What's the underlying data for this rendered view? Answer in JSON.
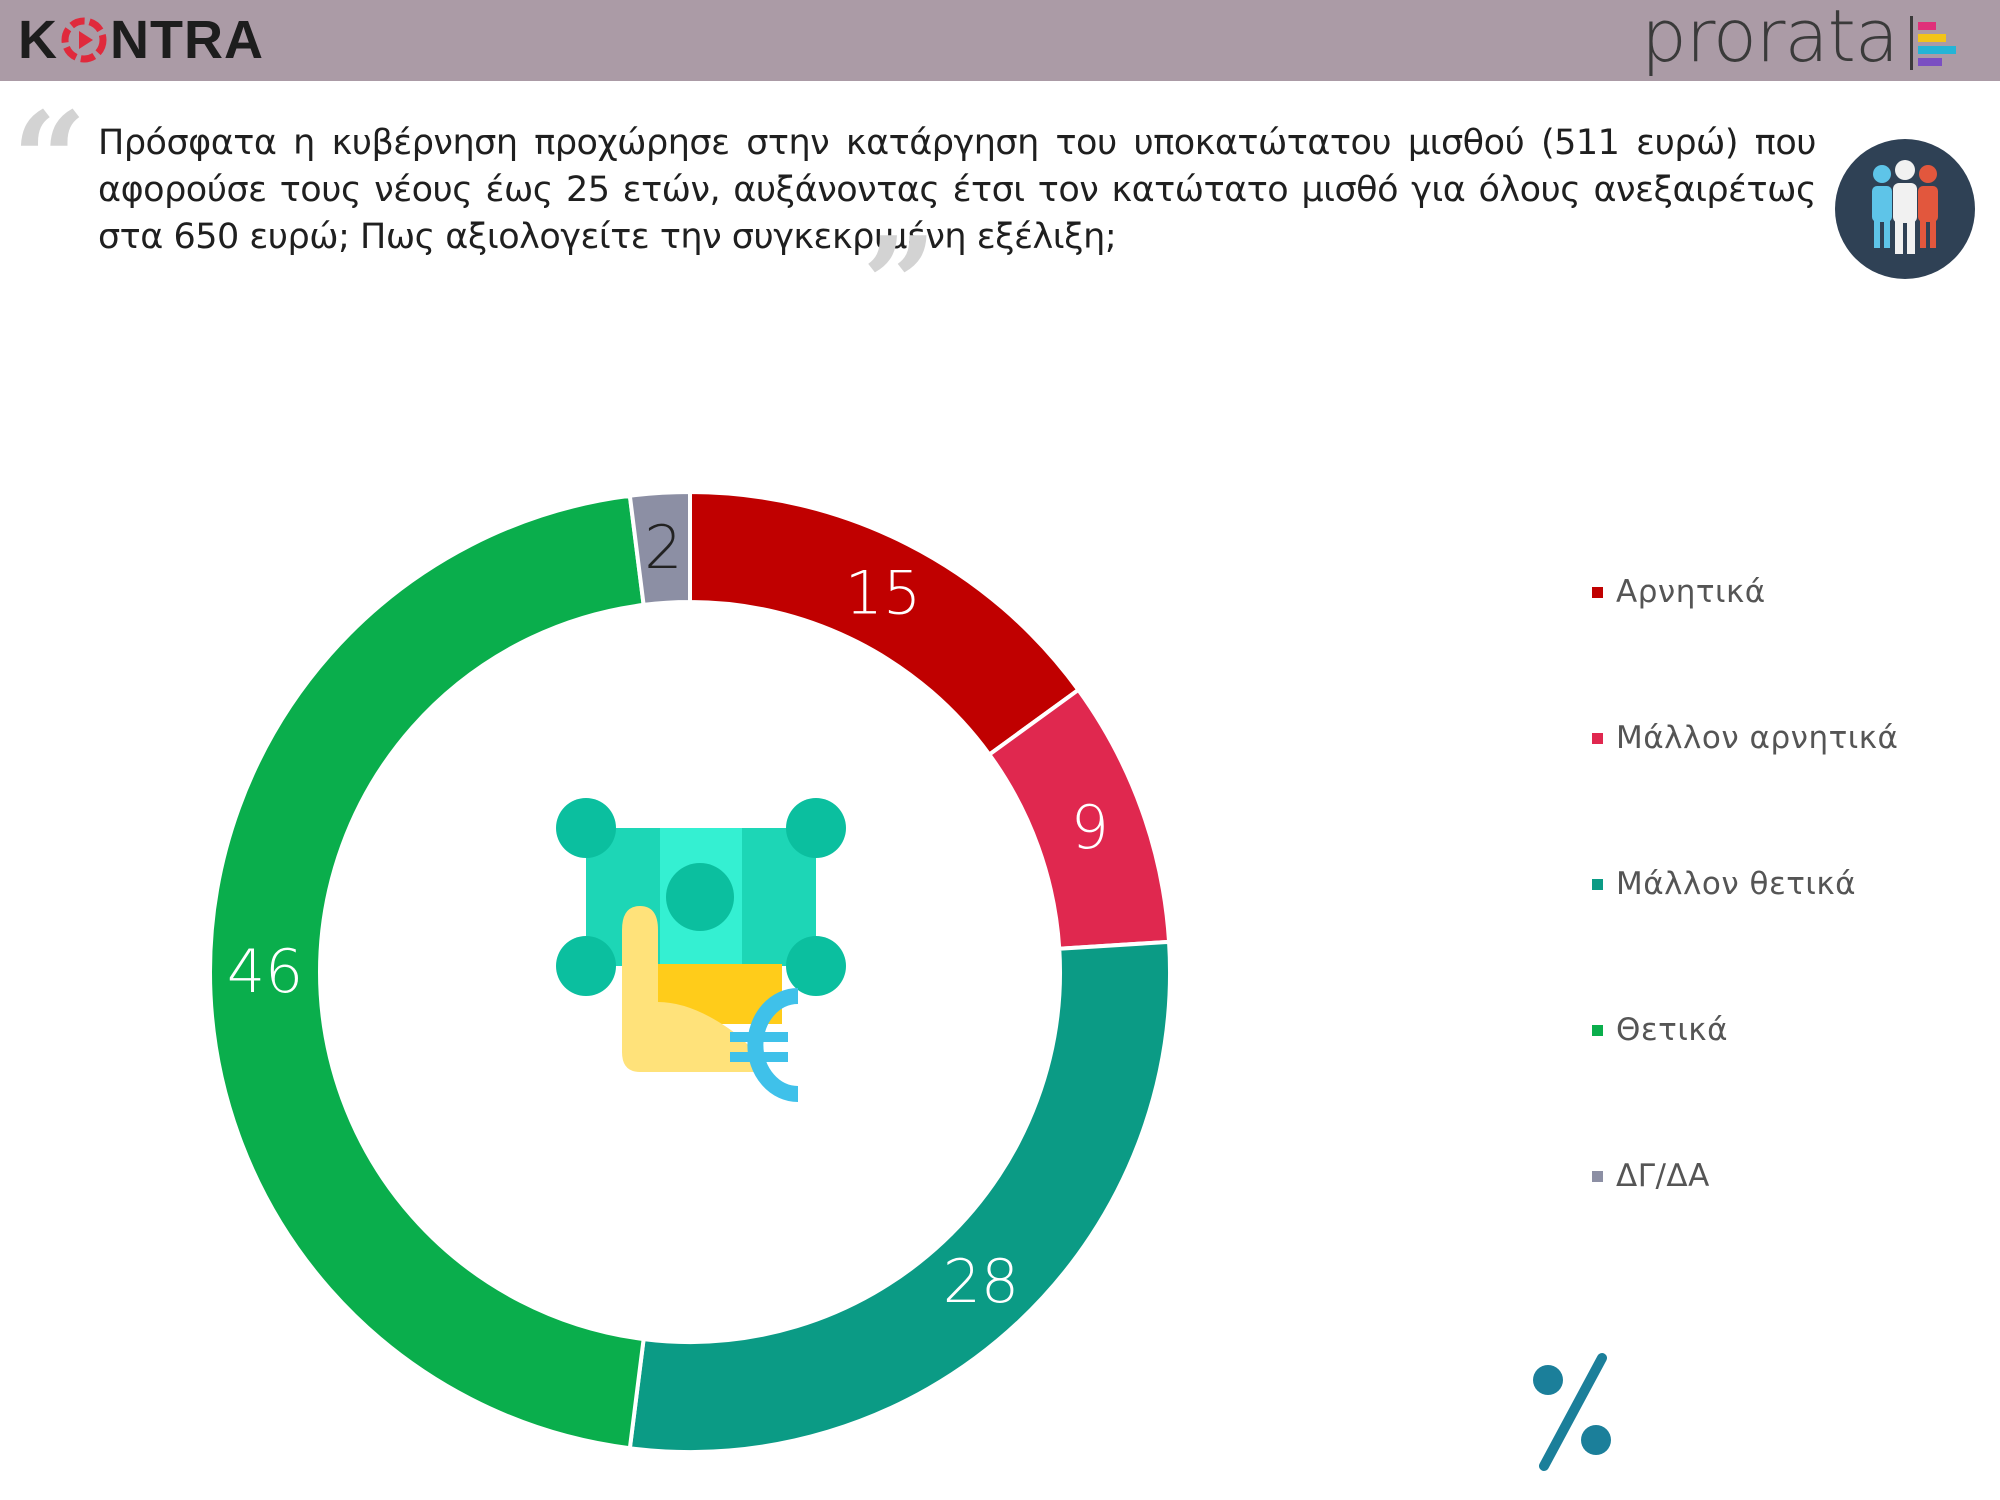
{
  "header": {
    "brand_left_before": "K",
    "brand_left_after": "NTRA",
    "brand_right": "prorata",
    "bar_color": "#ab9ba6"
  },
  "question": {
    "text": "Πρόσφατα η κυβέρνηση προχώρησε στην κατάργηση του υποκατώτατου μισθού (511 ευρώ) που αφορούσε τους νέους έως 25 ετών, αυξάνοντας έτσι τον κατώτατο μισθό για όλους ανεξαιρέτως στα 650 ευρώ; Πως αξιολογείτε την συγκεκριμένη εξέλιξη;"
  },
  "icons": {
    "quote_open": "opening-quote-icon",
    "quote_close": "closing-quote-icon",
    "badge": "people-group-icon",
    "center": "money-hand-euro-icon",
    "unit": "percent-icon"
  },
  "chart_data": {
    "type": "pie",
    "variant": "donut",
    "categories": [
      "Αρνητικά",
      "Μάλλον αρνητικά",
      "Μάλλον θετικά",
      "Θετικά",
      "ΔΓ/ΔΑ"
    ],
    "values": [
      15,
      9,
      28,
      46,
      2
    ],
    "colors": [
      "#c00000",
      "#e0284f",
      "#0b9b85",
      "#0aae4c",
      "#8c8fa4"
    ],
    "label_colors": [
      "#ffffff",
      "#ffffff",
      "#ffffff",
      "#ffffff",
      "#222222"
    ],
    "unit": "%",
    "start_angle": "12 o'clock",
    "direction": "clockwise",
    "legend_position": "right"
  }
}
